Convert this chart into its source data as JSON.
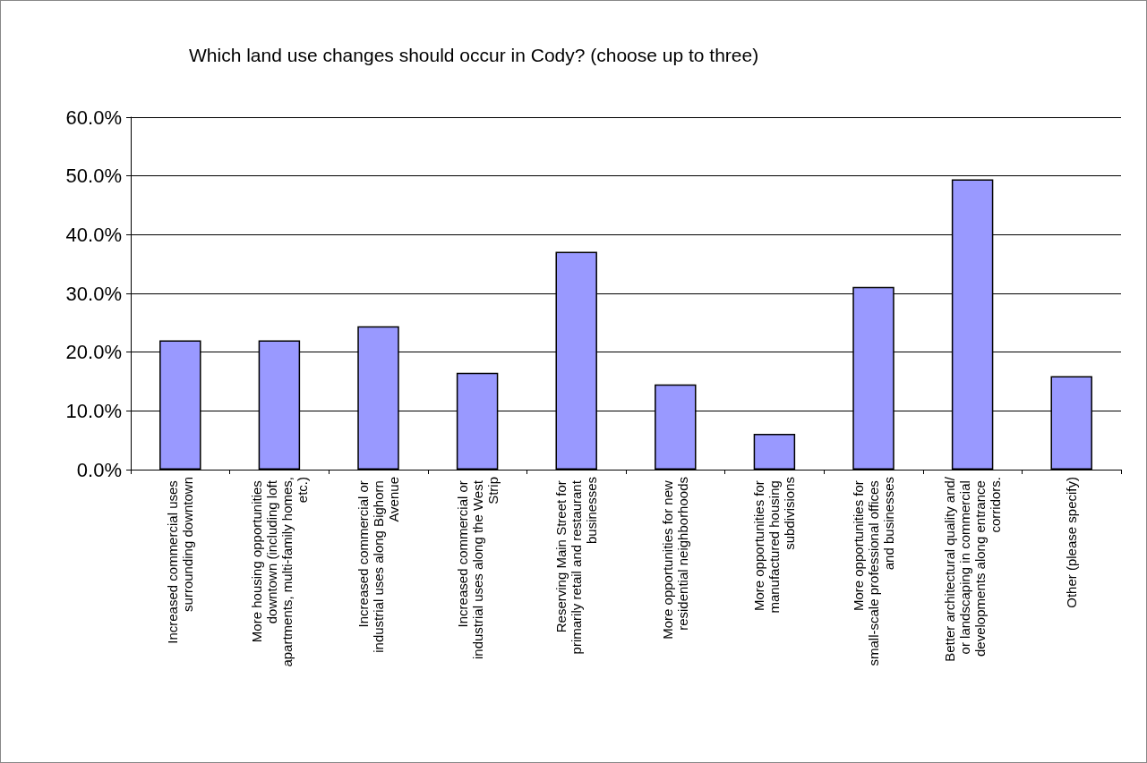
{
  "chart_data": {
    "type": "bar",
    "title": "Which land use changes should occur in Cody? (choose up to three)",
    "categories": [
      "Increased commercial uses surrounding downtown",
      "More housing opportunities downtown (including loft apartments, multi-family homes, etc.)",
      "Increased commercial or industrial uses along Bighorn Avenue",
      "Increased commercial or industrial uses along the West Strip",
      "Reserving Main Street for primarily retail and restaurant businesses",
      "More opportunities for new residential neighborhoods",
      "More opportunities for manufactured housing subdivisions",
      "More opportunities for small-scale professional offices and businesses",
      "Better architectural quality and/or landscaping in commercial developments along entrance corridors.",
      "Other (please specify)"
    ],
    "values": [
      22.0,
      22.0,
      24.4,
      16.5,
      37.1,
      14.5,
      6.1,
      31.1,
      49.4,
      15.9
    ],
    "color": "#9999ff",
    "ylim": [
      0,
      60
    ],
    "yticks": [
      {
        "value": 0,
        "label": "0.0%"
      },
      {
        "value": 10,
        "label": "10.0%"
      },
      {
        "value": 20,
        "label": "20.0%"
      },
      {
        "value": 30,
        "label": "30.0%"
      },
      {
        "value": 40,
        "label": "40.0%"
      },
      {
        "value": 50,
        "label": "50.0%"
      },
      {
        "value": 60,
        "label": "60.0%"
      }
    ],
    "grid": "y"
  }
}
